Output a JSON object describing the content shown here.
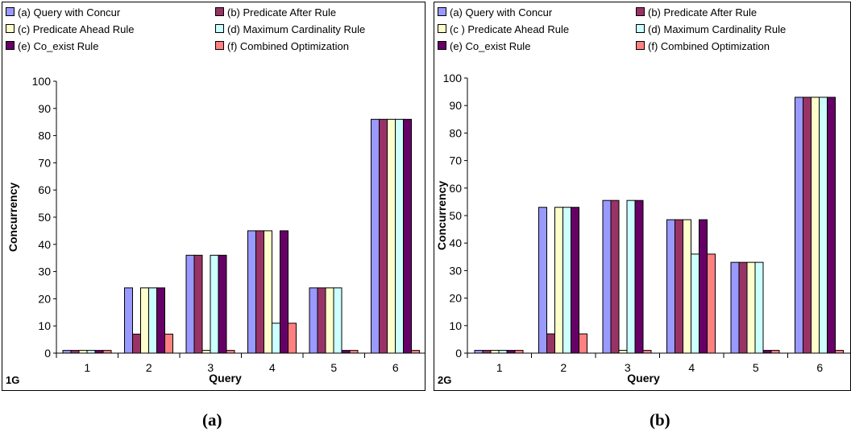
{
  "chart_data": [
    {
      "type": "bar",
      "panel_tag": "1G",
      "xlabel": "Query",
      "ylabel": "Concurrency",
      "ylim": [
        0,
        100
      ],
      "yticks": [
        "0",
        "10",
        "20",
        "30",
        "40",
        "50",
        "60",
        "70",
        "80",
        "90",
        "100"
      ],
      "categories": [
        "1",
        "2",
        "3",
        "4",
        "5",
        "6"
      ],
      "legend_placement": "top",
      "series": [
        {
          "name": "(a) Query with Concur",
          "color": "#9999ff",
          "values": [
            1,
            24,
            36,
            45,
            24,
            86
          ]
        },
        {
          "name": "(b) Predicate After Rule",
          "color": "#993366",
          "values": [
            1,
            7,
            36,
            45,
            24,
            86
          ]
        },
        {
          "name": "(c) Predicate Ahead Rule",
          "color": "#ffffcc",
          "values": [
            1,
            24,
            1,
            45,
            24,
            86
          ]
        },
        {
          "name": "(d) Maximum Cardinality Rule",
          "color": "#ccffff",
          "values": [
            1,
            24,
            36,
            11,
            24,
            86
          ]
        },
        {
          "name": "(e) Co_exist Rule",
          "color": "#660066",
          "values": [
            1,
            24,
            36,
            45,
            1,
            86
          ]
        },
        {
          "name": "(f) Combined Optimization",
          "color": "#ff8080",
          "values": [
            1,
            7,
            1,
            11,
            1,
            1
          ]
        }
      ]
    },
    {
      "type": "bar",
      "panel_tag": "2G",
      "xlabel": "Query",
      "ylabel": "Concurrency",
      "ylim": [
        0,
        100
      ],
      "yticks": [
        "0",
        "10",
        "20",
        "30",
        "40",
        "50",
        "60",
        "70",
        "80",
        "90",
        "100"
      ],
      "categories": [
        "1",
        "2",
        "3",
        "4",
        "5",
        "6"
      ],
      "legend_placement": "top",
      "series": [
        {
          "name": "(a) Query with Concur",
          "color": "#9999ff",
          "values": [
            1,
            53,
            55.5,
            48.5,
            33,
            93
          ]
        },
        {
          "name": "(b) Predicate After Rule",
          "color": "#993366",
          "values": [
            1,
            7,
            55.5,
            48.5,
            33,
            93
          ]
        },
        {
          "name": "(c ) Predicate Ahead Rule",
          "color": "#ffffcc",
          "values": [
            1,
            53,
            1,
            48.5,
            33,
            93
          ]
        },
        {
          "name": "(d) Maximum Cardinality Rule",
          "color": "#ccffff",
          "values": [
            1,
            53,
            55.5,
            36,
            33,
            93
          ]
        },
        {
          "name": "(e) Co_exist Rule",
          "color": "#660066",
          "values": [
            1,
            53,
            55.5,
            48.5,
            1,
            93
          ]
        },
        {
          "name": "(f) Combined Optimization",
          "color": "#ff8080",
          "values": [
            1,
            7,
            1,
            36,
            1,
            1
          ]
        }
      ]
    }
  ],
  "captions": [
    "(a)",
    "(b)"
  ]
}
